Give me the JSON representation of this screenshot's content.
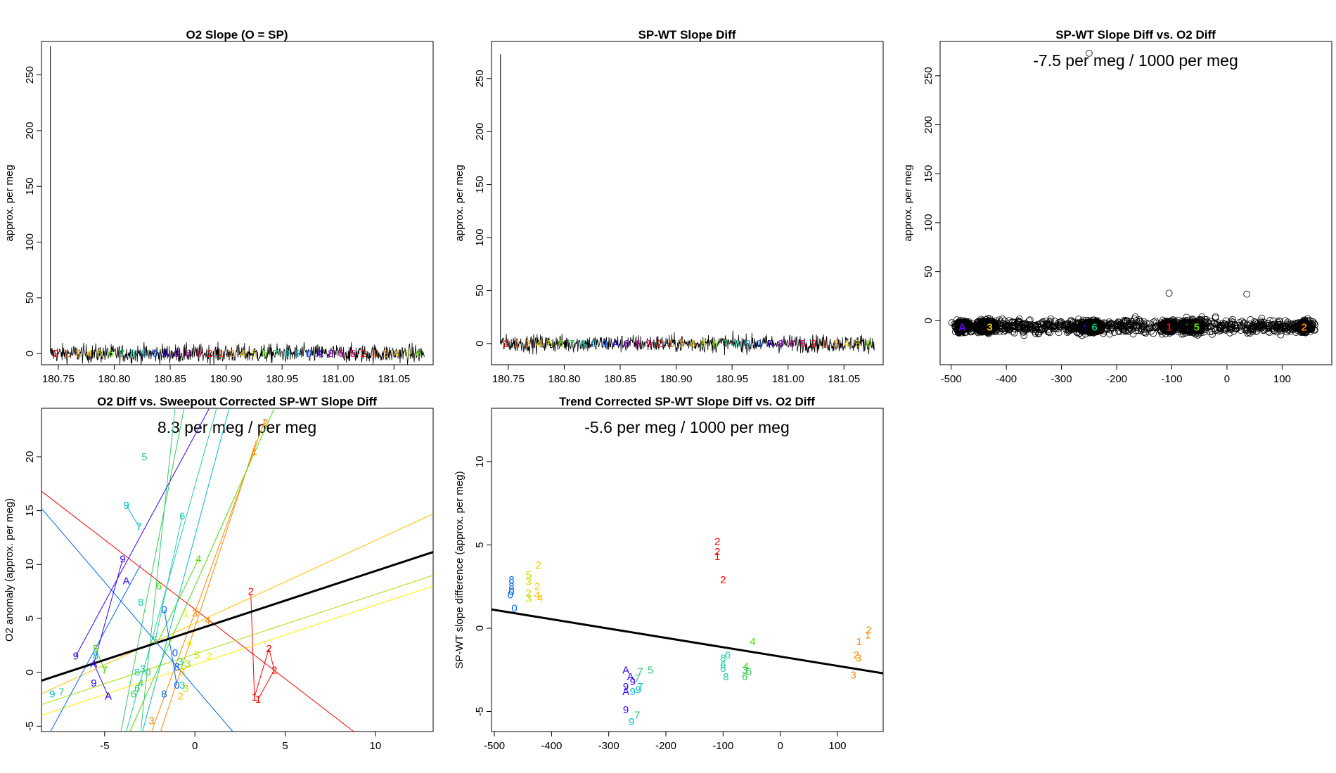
{
  "chart_data": [
    {
      "type": "line",
      "title": "O2 Slope (O = SP)",
      "xlabel": "",
      "ylabel": "approx. per meg",
      "xlim": [
        180.735,
        181.085
      ],
      "ylim": [
        -10,
        280
      ],
      "xticks": [
        "180.75",
        "180.80",
        "180.85",
        "180.90",
        "180.95",
        "181.00",
        "181.05"
      ],
      "xtick_values": [
        180.75,
        180.8,
        180.85,
        180.9,
        180.95,
        181.0,
        181.05
      ],
      "yticks": [
        "0",
        "50",
        "100",
        "150",
        "200",
        "250"
      ],
      "ytick_values": [
        0,
        50,
        100,
        150,
        200,
        250
      ],
      "series": [
        {
          "name": "O2 slope",
          "spike": {
            "x": 180.743,
            "y": 276
          },
          "baseline": 0,
          "noise": 6
        }
      ]
    },
    {
      "type": "line",
      "title": "SP-WT Slope Diff",
      "xlabel": "",
      "ylabel": "approx. per meg",
      "xlim": [
        180.735,
        181.085
      ],
      "ylim": [
        -20,
        285
      ],
      "xticks": [
        "180.75",
        "180.80",
        "180.85",
        "180.90",
        "180.95",
        "181.00",
        "181.05"
      ],
      "xtick_values": [
        180.75,
        180.8,
        180.85,
        180.9,
        180.95,
        181.0,
        181.05
      ],
      "yticks": [
        "0",
        "50",
        "100",
        "150",
        "200",
        "250"
      ],
      "ytick_values": [
        0,
        50,
        100,
        150,
        200,
        250
      ],
      "series": [
        {
          "name": "SP-WT slope diff",
          "spike": {
            "x": 180.743,
            "y": 273
          },
          "baseline": 0,
          "noise": 6
        }
      ]
    },
    {
      "type": "scatter",
      "title": "SP-WT Slope Diff vs. O2 Diff",
      "annotation": "-7.5 per meg / 1000 per meg",
      "xlabel": "",
      "ylabel": "approx. per meg",
      "xlim": [
        -520,
        190
      ],
      "ylim": [
        -45,
        285
      ],
      "xticks": [
        "-500",
        "-400",
        "-300",
        "-200",
        "-100",
        "0",
        "100"
      ],
      "xtick_values": [
        -500,
        -400,
        -300,
        -200,
        -100,
        0,
        100
      ],
      "yticks": [
        "0",
        "50",
        "100",
        "150",
        "200",
        "250"
      ],
      "ytick_values": [
        0,
        50,
        100,
        150,
        200,
        250
      ],
      "clusters": [
        {
          "x": -480,
          "label": "A"
        },
        {
          "x": -440,
          "label": "4"
        },
        {
          "x": -430,
          "label": "3"
        },
        {
          "x": -255,
          "label": "9"
        },
        {
          "x": -240,
          "label": "6"
        },
        {
          "x": -105,
          "label": "1"
        },
        {
          "x": -70,
          "label": "7"
        },
        {
          "x": -55,
          "label": "5"
        },
        {
          "x": 140,
          "label": "2"
        }
      ],
      "outliers": [
        {
          "x": -250,
          "y": 273
        },
        {
          "x": -105,
          "y": 28
        },
        {
          "x": 36,
          "y": 27
        }
      ]
    },
    {
      "type": "scatter",
      "title": "O2 Diff vs. Sweepout Corrected SP-WT Slope Diff",
      "annotation": "8.3 per meg / per meg",
      "xlabel": "",
      "ylabel": "O2 anomaly (approx. per meg)",
      "xlim": [
        -8.5,
        13.2
      ],
      "ylim": [
        -5.5,
        24.5
      ],
      "xticks": [
        "-5",
        "0",
        "5",
        "10"
      ],
      "xtick_values": [
        -5,
        0,
        5,
        10
      ],
      "yticks": [
        "-5",
        "0",
        "5",
        "10",
        "15",
        "20"
      ],
      "ytick_values": [
        -5,
        0,
        5,
        10,
        15,
        20
      ],
      "fit_line": {
        "slope": 0.55,
        "intercept": 3.9
      },
      "points": [
        {
          "x": 3.1,
          "y": 7.5,
          "label": "2",
          "color": "#ff0000"
        },
        {
          "x": 4.1,
          "y": 2.2,
          "label": "2",
          "color": "#ff0000"
        },
        {
          "x": 4.4,
          "y": 0.2,
          "label": "2",
          "color": "#ff0000"
        },
        {
          "x": 3.3,
          "y": -2.3,
          "label": "1",
          "color": "#ff0000"
        },
        {
          "x": 3.5,
          "y": -2.5,
          "label": "1",
          "color": "#ff0000"
        },
        {
          "x": 3.3,
          "y": 20.5,
          "label": "1",
          "color": "#ff8800"
        },
        {
          "x": 3.9,
          "y": 23.2,
          "label": "2",
          "color": "#ff8800"
        },
        {
          "x": 0.0,
          "y": 5.5,
          "label": "3",
          "color": "#ff8800"
        },
        {
          "x": 0.7,
          "y": 4.8,
          "label": "4",
          "color": "#ff8800"
        },
        {
          "x": -2.4,
          "y": -4.5,
          "label": "3",
          "color": "#ff8800"
        },
        {
          "x": -0.7,
          "y": 0.0,
          "label": "3",
          "color": "#ffc000"
        },
        {
          "x": -0.8,
          "y": -2.2,
          "label": "2",
          "color": "#ffc000"
        },
        {
          "x": -0.5,
          "y": 5.5,
          "label": "1",
          "color": "#ffee00"
        },
        {
          "x": 0.8,
          "y": 1.5,
          "label": "2",
          "color": "#ffee00"
        },
        {
          "x": -0.3,
          "y": 2.7,
          "label": "4",
          "color": "#ffee00"
        },
        {
          "x": -0.6,
          "y": 0.6,
          "label": "5",
          "color": "#c8e000"
        },
        {
          "x": 0.1,
          "y": 1.6,
          "label": "5",
          "color": "#c8e000"
        },
        {
          "x": -0.5,
          "y": -1.5,
          "label": "3",
          "color": "#c8e000"
        },
        {
          "x": -0.4,
          "y": 0.8,
          "label": "3",
          "color": "#a0e000"
        },
        {
          "x": 0.2,
          "y": 10.5,
          "label": "4",
          "color": "#44dd00"
        },
        {
          "x": -2.0,
          "y": 8.0,
          "label": "6",
          "color": "#44dd00"
        },
        {
          "x": -5.5,
          "y": 2.2,
          "label": "5",
          "color": "#44dd00"
        },
        {
          "x": -5.0,
          "y": 0.2,
          "label": "7",
          "color": "#44dd00"
        },
        {
          "x": -3.4,
          "y": -2.0,
          "label": "6",
          "color": "#33cc55"
        },
        {
          "x": -3.2,
          "y": -1.5,
          "label": "6",
          "color": "#33cc55"
        },
        {
          "x": -3.0,
          "y": -1.0,
          "label": "4",
          "color": "#33cc55"
        },
        {
          "x": -2.6,
          "y": 0.0,
          "label": "0",
          "color": "#33cc55"
        },
        {
          "x": -2.8,
          "y": 20.0,
          "label": "5",
          "color": "#33cc77"
        },
        {
          "x": -0.8,
          "y": 1.0,
          "label": "3",
          "color": "#33cc77"
        },
        {
          "x": -2.2,
          "y": 3.0,
          "label": "5",
          "color": "#33cc77"
        },
        {
          "x": -0.7,
          "y": -1.2,
          "label": "3",
          "color": "#22ccaa"
        },
        {
          "x": -0.7,
          "y": 14.5,
          "label": "6",
          "color": "#22ccaa"
        },
        {
          "x": -2.9,
          "y": 0.3,
          "label": "3",
          "color": "#22ccaa"
        },
        {
          "x": -3.0,
          "y": 6.5,
          "label": "8",
          "color": "#22ccaa"
        },
        {
          "x": -3.2,
          "y": 0.0,
          "label": "8",
          "color": "#22ccaa"
        },
        {
          "x": -7.4,
          "y": -1.8,
          "label": "7",
          "color": "#22ccaa"
        },
        {
          "x": -3.1,
          "y": 13.5,
          "label": "7",
          "color": "#00bbcc"
        },
        {
          "x": -3.8,
          "y": 15.5,
          "label": "9",
          "color": "#00bbcc"
        },
        {
          "x": -7.9,
          "y": -2.0,
          "label": "9",
          "color": "#00bbcc"
        },
        {
          "x": -5.5,
          "y": 1.5,
          "label": "8",
          "color": "#00bbcc"
        },
        {
          "x": -1.7,
          "y": 5.8,
          "label": "0",
          "color": "#0066ff"
        },
        {
          "x": -1.1,
          "y": 1.8,
          "label": "0",
          "color": "#0066ff"
        },
        {
          "x": -1.0,
          "y": 0.5,
          "label": "8",
          "color": "#0066ff"
        },
        {
          "x": -1.0,
          "y": -1.2,
          "label": "0",
          "color": "#0066ff"
        },
        {
          "x": -1.7,
          "y": -2.0,
          "label": "8",
          "color": "#0066ff"
        },
        {
          "x": -4.0,
          "y": 10.5,
          "label": "9",
          "color": "#3300ff"
        },
        {
          "x": -3.8,
          "y": 8.5,
          "label": "A",
          "color": "#3300ff"
        },
        {
          "x": -6.6,
          "y": 1.5,
          "label": "9",
          "color": "#3300ff"
        },
        {
          "x": -5.6,
          "y": 0.8,
          "label": "A",
          "color": "#3300ff"
        },
        {
          "x": -5.6,
          "y": -1.0,
          "label": "9",
          "color": "#3300ff"
        },
        {
          "x": -4.8,
          "y": -2.2,
          "label": "A",
          "color": "#3300ff"
        }
      ],
      "segments": [
        {
          "color": "#ff0000",
          "x1": -8.5,
          "y1": 16.8,
          "x2": 8.8,
          "y2": -5.5
        },
        {
          "color": "#ff0000",
          "x1": 3.1,
          "y1": 7.2,
          "x2": 3.3,
          "y2": -2.3
        },
        {
          "color": "#ff0000",
          "x1": 3.3,
          "y1": -2.3,
          "x2": 4.1,
          "y2": 2.2
        },
        {
          "color": "#ff0000",
          "x1": 3.5,
          "y1": -2.5,
          "x2": 4.4,
          "y2": 0.2
        },
        {
          "color": "#ff0000",
          "x1": 4.1,
          "y1": 2.2,
          "x2": 4.4,
          "y2": 0.2
        },
        {
          "color": "#ff8800",
          "x1": -2.4,
          "y1": -5.5,
          "x2": 3.9,
          "y2": 23.5
        },
        {
          "color": "#ff8800",
          "x1": -1.9,
          "y1": -5.5,
          "x2": 3.4,
          "y2": 21.5
        },
        {
          "color": "#ffc000",
          "x1": -8.5,
          "y1": -2.0,
          "x2": 13.2,
          "y2": 14.7
        },
        {
          "color": "#ffee00",
          "x1": -8.5,
          "y1": -4.0,
          "x2": 13.2,
          "y2": 8.0
        },
        {
          "color": "#a0e000",
          "x1": -8.5,
          "y1": -3.0,
          "x2": 13.2,
          "y2": 9.0
        },
        {
          "color": "#44dd00",
          "x1": -3.6,
          "y1": -5.5,
          "x2": 4.4,
          "y2": 24.5
        },
        {
          "color": "#44dd00",
          "x1": -2.0,
          "y1": 3.0,
          "x2": 0.2,
          "y2": 10.5
        },
        {
          "color": "#44dd00",
          "x1": -5.5,
          "y1": 2.2,
          "x2": -5.0,
          "y2": 0.2
        },
        {
          "color": "#33cc55",
          "x1": -4.1,
          "y1": -5.5,
          "x2": -0.6,
          "y2": 24.5
        },
        {
          "color": "#33cc77",
          "x1": -3.0,
          "y1": -5.5,
          "x2": -1.1,
          "y2": 24.5
        },
        {
          "color": "#22ccaa",
          "x1": -3.8,
          "y1": -5.5,
          "x2": 1.2,
          "y2": 24.5
        },
        {
          "color": "#22ccaa",
          "x1": -2.2,
          "y1": 3.0,
          "x2": -0.7,
          "y2": 14.5
        },
        {
          "color": "#00bbcc",
          "x1": -2.9,
          "y1": -5.5,
          "x2": 1.9,
          "y2": 24.5
        },
        {
          "color": "#00bbcc",
          "x1": -3.8,
          "y1": 15.5,
          "x2": -3.1,
          "y2": 13.5
        },
        {
          "color": "#0066ff",
          "x1": -8.5,
          "y1": 15.2,
          "x2": 2.1,
          "y2": -5.5
        },
        {
          "color": "#0066ff",
          "x1": -8.0,
          "y1": -5.5,
          "x2": -3.0,
          "y2": 10.0
        },
        {
          "color": "#0066ff",
          "x1": -1.7,
          "y1": 5.8,
          "x2": -1.0,
          "y2": -1.2
        },
        {
          "color": "#3300ff",
          "x1": -6.6,
          "y1": 1.5,
          "x2": 0.8,
          "y2": 24.5
        },
        {
          "color": "#3300ff",
          "x1": -4.0,
          "y1": 10.5,
          "x2": -5.6,
          "y2": 0.8
        },
        {
          "color": "#3300ff",
          "x1": -5.6,
          "y1": 0.8,
          "x2": -4.8,
          "y2": -2.2
        }
      ]
    },
    {
      "type": "scatter",
      "title": "Trend Corrected SP-WT Slope Diff vs. O2 Diff",
      "annotation": "-5.6 per meg / 1000 per meg",
      "xlabel": "",
      "ylabel": "SP-WT slope difference (approx. per meg)",
      "xlim": [
        -505,
        180
      ],
      "ylim": [
        -6.2,
        13.2
      ],
      "xticks": [
        "-500",
        "-400",
        "-300",
        "-200",
        "-100",
        "0",
        "100"
      ],
      "xtick_values": [
        -500,
        -400,
        -300,
        -200,
        -100,
        0,
        100
      ],
      "yticks": [
        "-5",
        "0",
        "5",
        "10"
      ],
      "ytick_values": [
        -5,
        0,
        5,
        10
      ],
      "fit_line": {
        "slope": -0.0056,
        "intercept": -1.7
      },
      "points": [
        {
          "x": -110,
          "y": 5.2,
          "label": "2",
          "color": "#ff0000"
        },
        {
          "x": -110,
          "y": 4.6,
          "label": "2",
          "color": "#ff0000"
        },
        {
          "x": -110,
          "y": 4.3,
          "label": "1",
          "color": "#ff0000"
        },
        {
          "x": -100,
          "y": 2.9,
          "label": "2",
          "color": "#ff0000"
        },
        {
          "x": 155,
          "y": -0.1,
          "label": "2",
          "color": "#ff8800"
        },
        {
          "x": 153,
          "y": -0.4,
          "label": "1",
          "color": "#ff8800"
        },
        {
          "x": 138,
          "y": -0.8,
          "label": "1",
          "color": "#ff8800"
        },
        {
          "x": 133,
          "y": -1.6,
          "label": "2",
          "color": "#ff8800"
        },
        {
          "x": 137,
          "y": -1.8,
          "label": "3",
          "color": "#ff8800"
        },
        {
          "x": 128,
          "y": -2.8,
          "label": "3",
          "color": "#ff8800"
        },
        {
          "x": -423,
          "y": 3.8,
          "label": "2",
          "color": "#ffc000"
        },
        {
          "x": -425,
          "y": 2.5,
          "label": "2",
          "color": "#ffc000"
        },
        {
          "x": -420,
          "y": 1.8,
          "label": "4",
          "color": "#ffc000"
        },
        {
          "x": -425,
          "y": 2.0,
          "label": "4",
          "color": "#ffc000"
        },
        {
          "x": -440,
          "y": 3.2,
          "label": "5",
          "color": "#c8e000"
        },
        {
          "x": -440,
          "y": 2.8,
          "label": "3",
          "color": "#c8e000"
        },
        {
          "x": -440,
          "y": 2.1,
          "label": "2",
          "color": "#c8e000"
        },
        {
          "x": -440,
          "y": 1.8,
          "label": "3",
          "color": "#c8e000"
        },
        {
          "x": -48,
          "y": -0.8,
          "label": "4",
          "color": "#44dd00"
        },
        {
          "x": -60,
          "y": -2.3,
          "label": "4",
          "color": "#44dd00"
        },
        {
          "x": -55,
          "y": -2.6,
          "label": "6",
          "color": "#33cc55"
        },
        {
          "x": -62,
          "y": -2.5,
          "label": "3",
          "color": "#33cc55"
        },
        {
          "x": -62,
          "y": -2.9,
          "label": "6",
          "color": "#33cc55"
        },
        {
          "x": -227,
          "y": -2.5,
          "label": "5",
          "color": "#33cc77"
        },
        {
          "x": -245,
          "y": -2.6,
          "label": "7",
          "color": "#33cc77"
        },
        {
          "x": -250,
          "y": -3.0,
          "label": "7",
          "color": "#33cc77"
        },
        {
          "x": -250,
          "y": -5.2,
          "label": "7",
          "color": "#33cc77"
        },
        {
          "x": -92,
          "y": -1.6,
          "label": "6",
          "color": "#22ccaa"
        },
        {
          "x": -100,
          "y": -1.8,
          "label": "8",
          "color": "#22ccaa"
        },
        {
          "x": -100,
          "y": -2.2,
          "label": "6",
          "color": "#22ccaa"
        },
        {
          "x": -95,
          "y": -2.9,
          "label": "8",
          "color": "#22ccaa"
        },
        {
          "x": -100,
          "y": -2.4,
          "label": "6",
          "color": "#22ccaa"
        },
        {
          "x": -245,
          "y": -3.5,
          "label": "7",
          "color": "#00bbcc"
        },
        {
          "x": -248,
          "y": -3.7,
          "label": "9",
          "color": "#00bbcc"
        },
        {
          "x": -258,
          "y": -3.8,
          "label": "9",
          "color": "#00bbcc"
        },
        {
          "x": -260,
          "y": -5.6,
          "label": "9",
          "color": "#00bbcc"
        },
        {
          "x": -470,
          "y": 2.9,
          "label": "8",
          "color": "#0066ff"
        },
        {
          "x": -470,
          "y": 2.5,
          "label": "8",
          "color": "#0066ff"
        },
        {
          "x": -470,
          "y": 2.2,
          "label": "0",
          "color": "#0066ff"
        },
        {
          "x": -472,
          "y": 2.0,
          "label": "0",
          "color": "#0066ff"
        },
        {
          "x": -465,
          "y": 1.2,
          "label": "0",
          "color": "#0066ff"
        },
        {
          "x": -270,
          "y": -2.5,
          "label": "A",
          "color": "#3300ff"
        },
        {
          "x": -262,
          "y": -2.9,
          "label": "A",
          "color": "#3300ff"
        },
        {
          "x": -258,
          "y": -3.2,
          "label": "9",
          "color": "#3300ff"
        },
        {
          "x": -270,
          "y": -3.5,
          "label": "9",
          "color": "#3300ff"
        },
        {
          "x": -270,
          "y": -3.8,
          "label": "A",
          "color": "#3300ff"
        },
        {
          "x": -270,
          "y": -4.9,
          "label": "9",
          "color": "#3300ff"
        }
      ]
    }
  ]
}
